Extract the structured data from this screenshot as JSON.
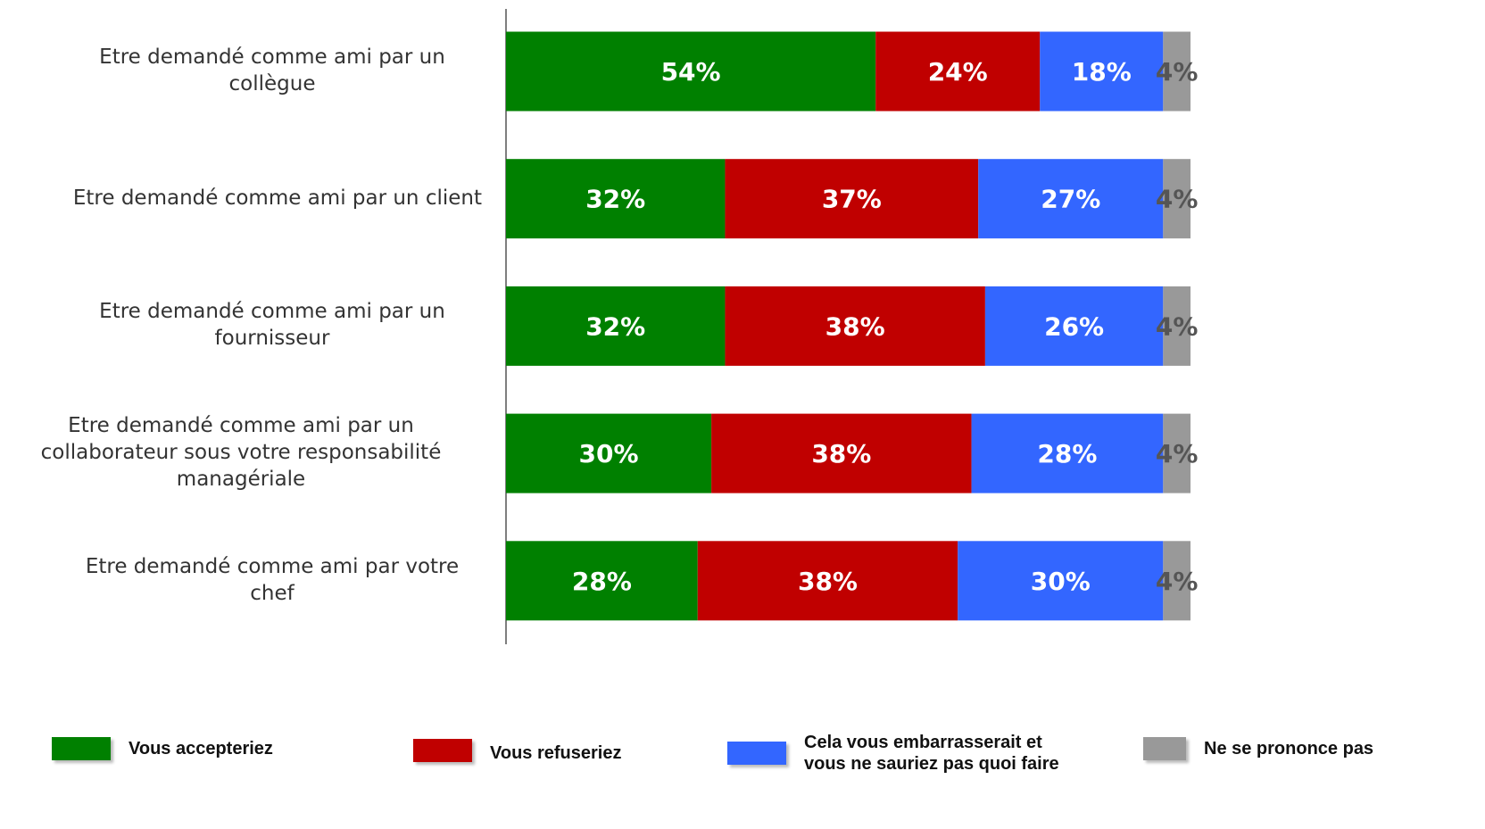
{
  "chart_data": {
    "type": "stacked-bar-horizontal",
    "categories": [
      "Etre demandé comme ami par un collègue",
      "Etre demandé comme ami par un client",
      "Etre demandé comme ami par un fournisseur",
      "Etre demandé comme ami par un collaborateur sous votre responsabilité managériale",
      "Etre demandé comme ami par votre chef"
    ],
    "xlim": [
      0,
      100
    ],
    "series": [
      {
        "name": "Vous accepteriez",
        "color": "#008000",
        "values": [
          54,
          32,
          32,
          30,
          28
        ],
        "value_labels": [
          "54%",
          "32%",
          "32%",
          "30%",
          "28%"
        ]
      },
      {
        "name": "Vous refuseriez",
        "color": "#c00000",
        "values": [
          24,
          37,
          38,
          38,
          38
        ],
        "value_labels": [
          "24%",
          "37%",
          "38%",
          "38%",
          "38%"
        ]
      },
      {
        "name": "Cela vous embarrasserait et vous ne sauriez pas quoi faire",
        "color": "#3366ff",
        "values": [
          18,
          27,
          26,
          28,
          30
        ],
        "value_labels": [
          "18%",
          "27%",
          "26%",
          "28%",
          "30%"
        ]
      },
      {
        "name": "Ne se prononce pas",
        "color": "#999999",
        "values": [
          4,
          4,
          4,
          4,
          4
        ],
        "value_labels": [
          "4%",
          "4%",
          "4%",
          "4%",
          "4%"
        ]
      }
    ]
  }
}
